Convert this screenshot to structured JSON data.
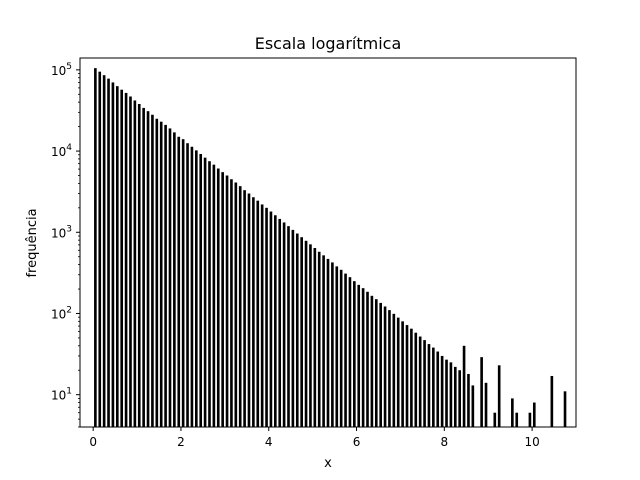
{
  "chart_data": {
    "type": "bar",
    "title": "Escala logarítmica",
    "xlabel": "x",
    "ylabel": "frequência",
    "yscale": "log",
    "xlim": [
      -0.3,
      11.0
    ],
    "ylim": [
      4,
      140000
    ],
    "x_ticks": [
      0,
      2,
      4,
      6,
      8,
      10
    ],
    "x_tick_labels": [
      "0",
      "2",
      "4",
      "6",
      "8",
      "10"
    ],
    "y_ticks": [
      10,
      100,
      1000,
      10000,
      100000
    ],
    "y_tick_labels": [
      {
        "base": "10",
        "exp": "1"
      },
      {
        "base": "10",
        "exp": "2"
      },
      {
        "base": "10",
        "exp": "3"
      },
      {
        "base": "10",
        "exp": "4"
      },
      {
        "base": "10",
        "exp": "5"
      }
    ],
    "bar_color": "#000000",
    "bar_width": 0.06,
    "x": [
      0.05,
      0.15,
      0.25,
      0.35,
      0.45,
      0.55,
      0.65,
      0.75,
      0.85,
      0.95,
      1.05,
      1.15,
      1.25,
      1.35,
      1.45,
      1.55,
      1.65,
      1.75,
      1.85,
      1.95,
      2.05,
      2.15,
      2.25,
      2.35,
      2.45,
      2.55,
      2.65,
      2.75,
      2.85,
      2.95,
      3.05,
      3.15,
      3.25,
      3.35,
      3.45,
      3.55,
      3.65,
      3.75,
      3.85,
      3.95,
      4.05,
      4.15,
      4.25,
      4.35,
      4.45,
      4.55,
      4.65,
      4.75,
      4.85,
      4.95,
      5.05,
      5.15,
      5.25,
      5.35,
      5.45,
      5.55,
      5.65,
      5.75,
      5.85,
      5.95,
      6.05,
      6.15,
      6.25,
      6.35,
      6.45,
      6.55,
      6.65,
      6.75,
      6.85,
      6.95,
      7.05,
      7.15,
      7.25,
      7.35,
      7.45,
      7.55,
      7.65,
      7.75,
      7.85,
      7.95,
      8.05,
      8.15,
      8.25,
      8.35,
      8.45,
      8.55,
      8.65,
      8.85,
      8.95,
      9.15,
      9.25,
      9.55,
      9.65,
      9.95,
      10.05,
      10.45,
      10.75
    ],
    "values": [
      105000,
      95000,
      86000,
      78000,
      70000,
      63000,
      57000,
      52000,
      47000,
      42000,
      38000,
      34000,
      31000,
      28000,
      25000,
      23000,
      21000,
      19000,
      17000,
      15000,
      14000,
      12500,
      11300,
      10200,
      9200,
      8300,
      7500,
      6800,
      6100,
      5500,
      5000,
      4500,
      4100,
      3700,
      3300,
      3000,
      2700,
      2450,
      2200,
      2000,
      1800,
      1620,
      1460,
      1320,
      1190,
      1070,
      965,
      870,
      785,
      710,
      640,
      575,
      520,
      470,
      425,
      380,
      345,
      310,
      280,
      250,
      225,
      205,
      185,
      165,
      150,
      135,
      122,
      110,
      99,
      89,
      80,
      72,
      65,
      58,
      52,
      47,
      42,
      38,
      34,
      30,
      27,
      25,
      22,
      20,
      40,
      18,
      13,
      29,
      14,
      6,
      23,
      9,
      6,
      6,
      8,
      17,
      11
    ]
  }
}
